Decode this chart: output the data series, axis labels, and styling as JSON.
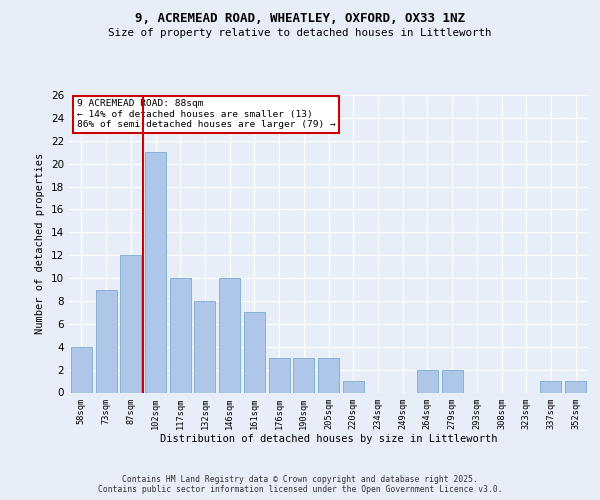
{
  "title1": "9, ACREMEAD ROAD, WHEATLEY, OXFORD, OX33 1NZ",
  "title2": "Size of property relative to detached houses in Littleworth",
  "xlabel": "Distribution of detached houses by size in Littleworth",
  "ylabel": "Number of detached properties",
  "categories": [
    "58sqm",
    "73sqm",
    "87sqm",
    "102sqm",
    "117sqm",
    "132sqm",
    "146sqm",
    "161sqm",
    "176sqm",
    "190sqm",
    "205sqm",
    "220sqm",
    "234sqm",
    "249sqm",
    "264sqm",
    "279sqm",
    "293sqm",
    "308sqm",
    "323sqm",
    "337sqm",
    "352sqm"
  ],
  "values": [
    4,
    9,
    12,
    21,
    10,
    8,
    10,
    7,
    3,
    3,
    3,
    1,
    0,
    0,
    2,
    2,
    0,
    0,
    0,
    1,
    1
  ],
  "bar_color": "#aec6e8",
  "bar_edge_color": "#7aaad0",
  "property_line_color": "#cc0000",
  "annotation_text": "9 ACREMEAD ROAD: 88sqm\n← 14% of detached houses are smaller (13)\n86% of semi-detached houses are larger (79) →",
  "annotation_box_color": "#cc0000",
  "ylim": [
    0,
    26
  ],
  "yticks": [
    0,
    2,
    4,
    6,
    8,
    10,
    12,
    14,
    16,
    18,
    20,
    22,
    24,
    26
  ],
  "footer": "Contains HM Land Registry data © Crown copyright and database right 2025.\nContains public sector information licensed under the Open Government Licence v3.0.",
  "bg_color": "#e8eef7"
}
